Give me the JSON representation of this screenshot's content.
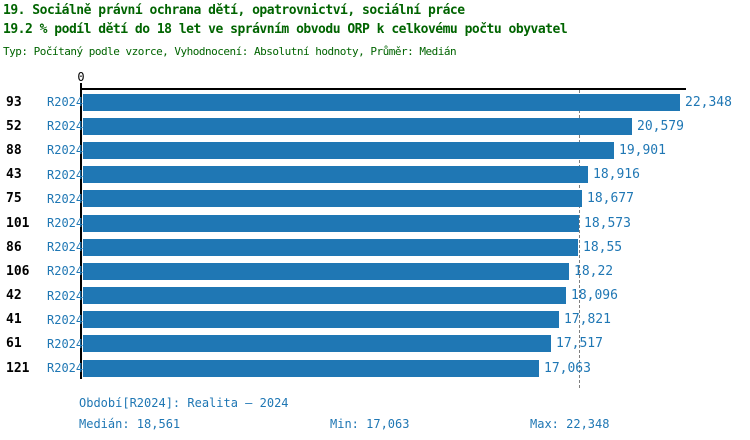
{
  "header": {
    "title_line1": "19. Sociálně právní ochrana dětí, opatrovnictví, sociální práce",
    "title_line2": "19.2 % podíl dětí do 18 let ve správním obvodu ORP k celkovému počtu obyvatel",
    "meta_line": "Typ: Počítaný podle vzorce, Vyhodnocení: Absolutní hodnoty, Průměr: Medián"
  },
  "chart_data": {
    "type": "bar",
    "orientation": "horizontal",
    "title": "19.2 % podíl dětí do 18 let ve správním obvodu ORP k celkovému počtu obyvatel",
    "zero_tick_label": "0",
    "xlim": [
      0,
      22.7
    ],
    "grid": false,
    "median": 18.561,
    "rows": [
      {
        "org": "93",
        "period": "R2024",
        "value": 22.348,
        "display": "22,348"
      },
      {
        "org": "52",
        "period": "R2024",
        "value": 20.579,
        "display": "20,579"
      },
      {
        "org": "88",
        "period": "R2024",
        "value": 19.901,
        "display": "19,901"
      },
      {
        "org": "43",
        "period": "R2024",
        "value": 18.916,
        "display": "18,916"
      },
      {
        "org": "75",
        "period": "R2024",
        "value": 18.677,
        "display": "18,677"
      },
      {
        "org": "101",
        "period": "R2024",
        "value": 18.573,
        "display": "18,573"
      },
      {
        "org": "86",
        "period": "R2024",
        "value": 18.55,
        "display": "18,55"
      },
      {
        "org": "106",
        "period": "R2024",
        "value": 18.22,
        "display": "18,22"
      },
      {
        "org": "42",
        "period": "R2024",
        "value": 18.096,
        "display": "18,096"
      },
      {
        "org": "41",
        "period": "R2024",
        "value": 17.821,
        "display": "17,821"
      },
      {
        "org": "61",
        "period": "R2024",
        "value": 17.517,
        "display": "17,517"
      },
      {
        "org": "121",
        "period": "R2024",
        "value": 17.063,
        "display": "17,063"
      }
    ],
    "colors": {
      "bar": "#1f77b4",
      "text_blue": "#1f77b4",
      "title_green": "#006400",
      "axis": "#000000",
      "median_line": "#7f7f7f"
    }
  },
  "footer": {
    "period_info": "Období[R2024]: Realita – 2024",
    "median_label": "Medián: 18,561",
    "min_label": "Min: 17,063",
    "max_label": "Max: 22,348"
  }
}
